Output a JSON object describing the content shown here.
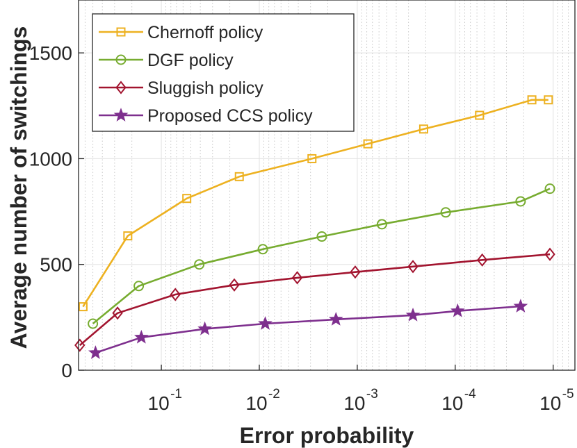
{
  "chart_data": {
    "type": "line",
    "xlabel": "Error probability",
    "ylabel": "Average number of switchings",
    "x_scale": "log-reversed",
    "x_ticks": [
      {
        "value": 0.1,
        "base": "10",
        "exp": "-1"
      },
      {
        "value": 0.01,
        "base": "10",
        "exp": "-2"
      },
      {
        "value": 0.001,
        "base": "10",
        "exp": "-3"
      },
      {
        "value": 0.0001,
        "base": "10",
        "exp": "-4"
      },
      {
        "value": 1e-05,
        "base": "10",
        "exp": "-5"
      }
    ],
    "y_ticks": [
      "0",
      "500",
      "1000",
      "1500"
    ],
    "y_tick_values": [
      0,
      500,
      1000,
      1500
    ],
    "ylim": [
      0,
      1750
    ],
    "xlim": [
      0.7,
      6e-06
    ],
    "grid": true,
    "legend_position": "top-left",
    "series": [
      {
        "name": "Chernoff policy",
        "color": "#EDB120",
        "marker": "square",
        "x": [
          0.63,
          0.22,
          0.055,
          0.016,
          0.0029,
          0.00078,
          0.00021,
          5.65e-05,
          1.65e-05,
          1.12e-05
        ],
        "y": [
          300,
          635,
          812,
          915,
          1000,
          1070,
          1140,
          1205,
          1278,
          1278
        ]
      },
      {
        "name": "DGF policy",
        "color": "#77AC30",
        "marker": "circle",
        "x": [
          0.5,
          0.17,
          0.041,
          0.0092,
          0.0023,
          0.00056,
          0.000125,
          2.15e-05,
          1.08e-05
        ],
        "y": [
          220,
          398,
          500,
          572,
          632,
          690,
          746,
          798,
          858
        ]
      },
      {
        "name": "Sluggish policy",
        "color": "#A2142F",
        "marker": "diamond",
        "x": [
          0.68,
          0.28,
          0.072,
          0.018,
          0.0041,
          0.00105,
          0.00027,
          5.3e-05,
          1.08e-05
        ],
        "y": [
          118,
          270,
          358,
          403,
          437,
          464,
          490,
          521,
          548
        ]
      },
      {
        "name": "Proposed CCS policy",
        "color": "#7E2F8E",
        "marker": "star",
        "x": [
          0.47,
          0.16,
          0.036,
          0.0087,
          0.00165,
          0.00027,
          9.45e-05,
          2.15e-05
        ],
        "y": [
          82,
          155,
          195,
          220,
          240,
          260,
          280,
          302
        ]
      }
    ]
  }
}
